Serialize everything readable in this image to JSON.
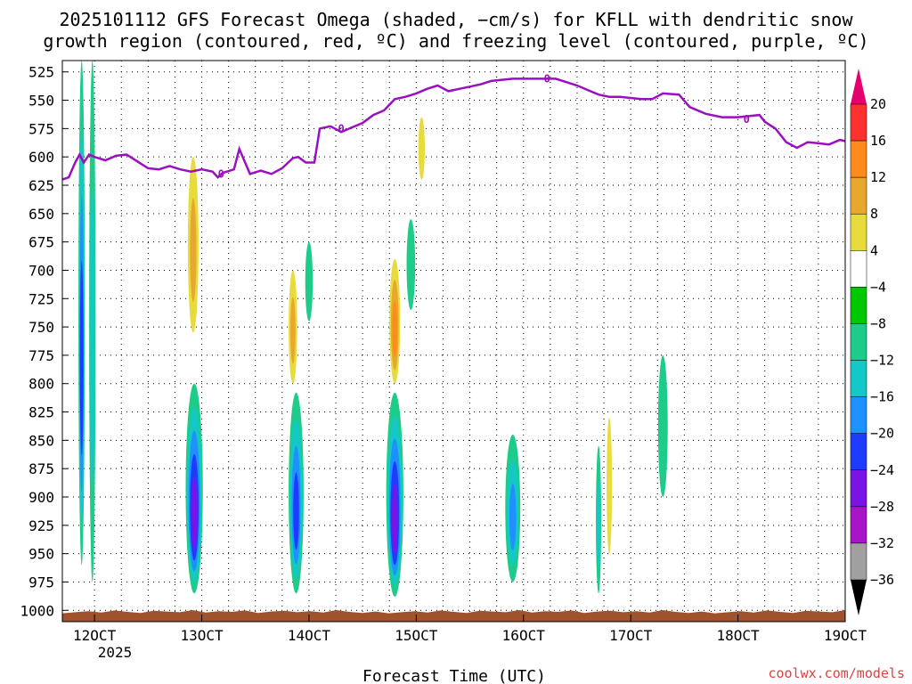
{
  "chart_data": {
    "type": "heatmap",
    "title_line1": "2025101112 GFS Forecast Omega (shaded, −cm/s) for KFLL with dendritic snow",
    "title_line2": "growth region (contoured, red, ºC) and freezing level (contoured, purple, ºC)",
    "xlabel": "Forecast Time (UTC)",
    "x_sublabel": "2025",
    "credit": "coolwx.com/models",
    "x_ticks": [
      "12OCT",
      "13OCT",
      "14OCT",
      "15OCT",
      "16OCT",
      "17OCT",
      "18OCT",
      "19OCT"
    ],
    "x_range_days": [
      11.7,
      19.0
    ],
    "y_ticks": [
      525,
      550,
      575,
      600,
      625,
      650,
      675,
      700,
      725,
      750,
      775,
      800,
      825,
      850,
      875,
      900,
      925,
      950,
      975,
      1000
    ],
    "y_range_hpa": [
      515,
      1010
    ],
    "colorbar": {
      "labels": [
        "20",
        "16",
        "12",
        "8",
        "4",
        "−4",
        "−8",
        "−12",
        "−16",
        "−20",
        "−24",
        "−28",
        "−32",
        "−36"
      ],
      "colors": [
        "#e6006e",
        "#ff3030",
        "#ff8c1a",
        "#e8a830",
        "#e8dc3c",
        "#ffffff",
        "#00c800",
        "#1ecc8a",
        "#14c8c8",
        "#1e90ff",
        "#1e3cff",
        "#7a14e6",
        "#a814c8",
        "#a0a0a0",
        "#000000"
      ]
    },
    "freezing_level": {
      "label": "0",
      "color": "#9a10c0",
      "points_day_hpa": [
        [
          11.7,
          620
        ],
        [
          11.76,
          618
        ],
        [
          11.82,
          605
        ],
        [
          11.86,
          598
        ],
        [
          11.9,
          605
        ],
        [
          11.95,
          598
        ],
        [
          12.0,
          600
        ],
        [
          12.1,
          603
        ],
        [
          12.2,
          599
        ],
        [
          12.3,
          598
        ],
        [
          12.4,
          604
        ],
        [
          12.5,
          610
        ],
        [
          12.6,
          611
        ],
        [
          12.7,
          608
        ],
        [
          12.8,
          611
        ],
        [
          12.9,
          613
        ],
        [
          13.0,
          611
        ],
        [
          13.1,
          613
        ],
        [
          13.15,
          618
        ],
        [
          13.2,
          614
        ],
        [
          13.3,
          611
        ],
        [
          13.35,
          593
        ],
        [
          13.45,
          615
        ],
        [
          13.55,
          612
        ],
        [
          13.65,
          615
        ],
        [
          13.75,
          610
        ],
        [
          13.85,
          601
        ],
        [
          13.9,
          600
        ],
        [
          13.97,
          605
        ],
        [
          14.05,
          605
        ],
        [
          14.1,
          575
        ],
        [
          14.2,
          573
        ],
        [
          14.3,
          578
        ],
        [
          14.4,
          574
        ],
        [
          14.5,
          570
        ],
        [
          14.6,
          563
        ],
        [
          14.7,
          559
        ],
        [
          14.8,
          549
        ],
        [
          14.9,
          547
        ],
        [
          15.0,
          544
        ],
        [
          15.1,
          540
        ],
        [
          15.2,
          537
        ],
        [
          15.3,
          542
        ],
        [
          15.4,
          540
        ],
        [
          15.5,
          538
        ],
        [
          15.6,
          536
        ],
        [
          15.7,
          533
        ],
        [
          15.8,
          532
        ],
        [
          15.9,
          531
        ],
        [
          16.0,
          531
        ],
        [
          16.1,
          531
        ],
        [
          16.2,
          531
        ],
        [
          16.3,
          531
        ],
        [
          16.4,
          534
        ],
        [
          16.5,
          537
        ],
        [
          16.6,
          541
        ],
        [
          16.7,
          545
        ],
        [
          16.8,
          547
        ],
        [
          16.9,
          547
        ],
        [
          17.0,
          548
        ],
        [
          17.1,
          549
        ],
        [
          17.2,
          549
        ],
        [
          17.3,
          544
        ],
        [
          17.45,
          545
        ],
        [
          17.55,
          556
        ],
        [
          17.7,
          562
        ],
        [
          17.85,
          565
        ],
        [
          18.0,
          565
        ],
        [
          18.1,
          564
        ],
        [
          18.2,
          563
        ],
        [
          18.25,
          569
        ],
        [
          18.35,
          575
        ],
        [
          18.45,
          587
        ],
        [
          18.55,
          592
        ],
        [
          18.65,
          587
        ],
        [
          18.75,
          588
        ],
        [
          18.85,
          589
        ],
        [
          18.95,
          585
        ],
        [
          19.0,
          586
        ]
      ]
    },
    "omega_features": [
      {
        "day": 11.88,
        "p_top": 515,
        "p_bot": 960,
        "w": 0.06,
        "levels": [
          "-8",
          "-12",
          "-16",
          "-20"
        ]
      },
      {
        "day": 11.98,
        "p_top": 515,
        "p_bot": 975,
        "w": 0.06,
        "levels": [
          "-8",
          "-12"
        ]
      },
      {
        "day": 12.93,
        "p_top": 800,
        "p_bot": 985,
        "w": 0.16,
        "levels": [
          "-8",
          "-12",
          "-16",
          "-20",
          "-24"
        ]
      },
      {
        "day": 13.88,
        "p_top": 808,
        "p_bot": 985,
        "w": 0.14,
        "levels": [
          "-8",
          "-12",
          "-16",
          "-20"
        ]
      },
      {
        "day": 14.8,
        "p_top": 808,
        "p_bot": 988,
        "w": 0.16,
        "levels": [
          "-8",
          "-12",
          "-16",
          "-20",
          "-24"
        ]
      },
      {
        "day": 15.9,
        "p_top": 845,
        "p_bot": 975,
        "w": 0.14,
        "levels": [
          "-8",
          "-12",
          "-16"
        ]
      },
      {
        "day": 16.7,
        "p_top": 855,
        "p_bot": 985,
        "w": 0.05,
        "levels": [
          "-8",
          "-12"
        ]
      },
      {
        "day": 17.3,
        "p_top": 775,
        "p_bot": 900,
        "w": 0.09,
        "levels": [
          "-8"
        ]
      },
      {
        "day": 14.0,
        "p_top": 675,
        "p_bot": 745,
        "w": 0.07,
        "levels": [
          "-8"
        ]
      },
      {
        "day": 14.95,
        "p_top": 655,
        "p_bot": 735,
        "w": 0.08,
        "levels": [
          "-8"
        ]
      },
      {
        "day": 12.92,
        "p_top": 600,
        "p_bot": 755,
        "w": 0.1,
        "levels": [
          "4",
          "8"
        ]
      },
      {
        "day": 13.85,
        "p_top": 700,
        "p_bot": 800,
        "w": 0.08,
        "levels": [
          "4",
          "8"
        ]
      },
      {
        "day": 14.8,
        "p_top": 690,
        "p_bot": 800,
        "w": 0.1,
        "levels": [
          "4",
          "8",
          "12"
        ]
      },
      {
        "day": 15.05,
        "p_top": 565,
        "p_bot": 620,
        "w": 0.06,
        "levels": [
          "4"
        ]
      },
      {
        "day": 16.8,
        "p_top": 830,
        "p_bot": 950,
        "w": 0.05,
        "levels": [
          "4"
        ]
      }
    ]
  }
}
